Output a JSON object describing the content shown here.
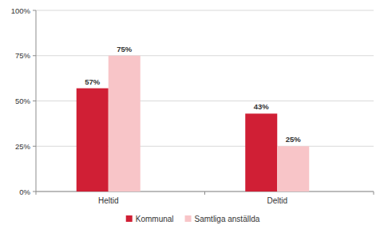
{
  "chart_data": {
    "type": "bar",
    "categories": [
      "Heltid",
      "Deltid"
    ],
    "series": [
      {
        "name": "Kommunal",
        "color": "#d01f35",
        "values": [
          57,
          43
        ],
        "value_labels": [
          "57%",
          "43%"
        ]
      },
      {
        "name": "Samtliga anställda",
        "color": "#f8c5c8",
        "values": [
          75,
          25
        ],
        "value_labels": [
          "75%",
          "25%"
        ]
      }
    ],
    "ylim": [
      0,
      100
    ],
    "yticks": [
      {
        "value": 0,
        "label": "0%"
      },
      {
        "value": 25,
        "label": "25%"
      },
      {
        "value": 50,
        "label": "50%"
      },
      {
        "value": 75,
        "label": "75%"
      },
      {
        "value": 100,
        "label": "100%"
      }
    ],
    "grid": true,
    "legend": "bottom",
    "data_labels": true
  }
}
